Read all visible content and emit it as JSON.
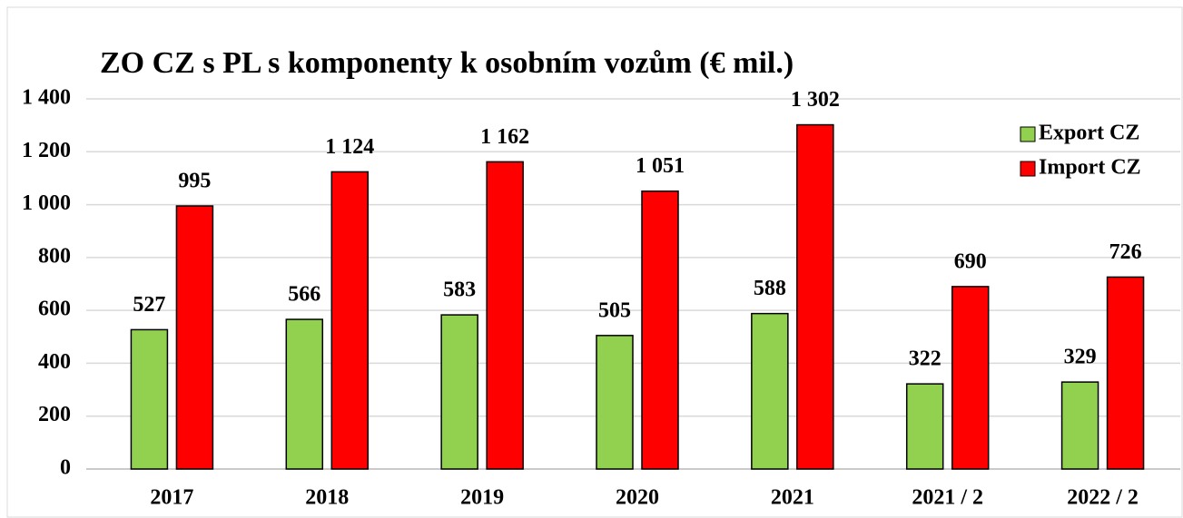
{
  "chart_data": {
    "type": "bar",
    "title": "ZO CZ s PL s komponenty k osobním vozům (€ mil.)",
    "categories": [
      "2017",
      "2018",
      "2019",
      "2020",
      "2021",
      "2021 / 2",
      "2022 / 2"
    ],
    "series": [
      {
        "name": "Export CZ",
        "color": "#92d050",
        "values": [
          527,
          566,
          583,
          505,
          588,
          322,
          329
        ],
        "value_labels": [
          "527",
          "566",
          "583",
          "505",
          "588",
          "322",
          "329"
        ]
      },
      {
        "name": "Import CZ",
        "color": "#ff0000",
        "values": [
          995,
          1124,
          1162,
          1051,
          1302,
          690,
          726
        ],
        "value_labels": [
          "995",
          "1 124",
          "1 162",
          "1 051",
          "1 302",
          "690",
          "726"
        ]
      }
    ],
    "ylim": [
      0,
      1400
    ],
    "yticks": [
      0,
      200,
      400,
      600,
      800,
      {
        "value": 1000,
        "label": "1 000"
      },
      {
        "value": 1200,
        "label": "1 200"
      },
      {
        "value": 1400,
        "label": "1 400"
      }
    ],
    "grid": true,
    "legend": "right"
  }
}
